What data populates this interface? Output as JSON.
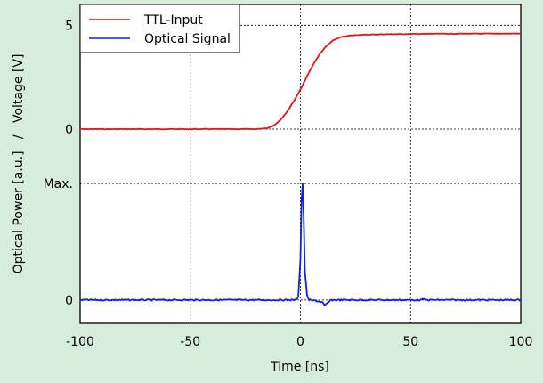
{
  "colors": {
    "background": "#d6ecdc",
    "plot_background": "#ffffff",
    "ttl": "#e8111a",
    "optical": "#0c1ef0",
    "grid": "#000000"
  },
  "chart_data": {
    "type": "line",
    "title": "",
    "xlabel": "Time [ns]",
    "ylabel": "Optical Power [a.u.]   /   Voltage [V]",
    "xlim": [
      -100,
      100
    ],
    "xticks": [
      -100,
      -50,
      0,
      50,
      100
    ],
    "xtick_labels": [
      "-100",
      "-50",
      "0",
      "50",
      "100"
    ],
    "grid": "dotted",
    "legend": "top-left",
    "panels": [
      {
        "name": "voltage",
        "ylim": [
          -1.5,
          6
        ],
        "yticks": [
          {
            "value": 0,
            "label": "0"
          },
          {
            "value": 5,
            "label": "5"
          }
        ]
      },
      {
        "name": "optical",
        "ylim": [
          -0.2,
          1.2
        ],
        "yticks": [
          {
            "value": 0,
            "label": "0"
          },
          {
            "value": 1,
            "label": "Max."
          }
        ]
      }
    ],
    "series": [
      {
        "name": "TTL-Input",
        "color": "#e8111a",
        "panel": "voltage",
        "points": [
          [
            -100,
            0.0
          ],
          [
            -20,
            0.0
          ],
          [
            -15,
            0.05
          ],
          [
            -12,
            0.18
          ],
          [
            -9,
            0.45
          ],
          [
            -6,
            0.85
          ],
          [
            -3,
            1.35
          ],
          [
            0,
            1.9
          ],
          [
            3,
            2.55
          ],
          [
            6,
            3.15
          ],
          [
            9,
            3.65
          ],
          [
            12,
            4.02
          ],
          [
            15,
            4.28
          ],
          [
            18,
            4.42
          ],
          [
            22,
            4.5
          ],
          [
            27,
            4.54
          ],
          [
            40,
            4.57
          ],
          [
            60,
            4.59
          ],
          [
            100,
            4.6
          ]
        ]
      },
      {
        "name": "Optical Signal",
        "color": "#0c1ef0",
        "panel": "optical",
        "points": [
          [
            -100,
            0.0
          ],
          [
            -2,
            0.0
          ],
          [
            -1,
            0.03
          ],
          [
            0,
            0.35
          ],
          [
            0.5,
            0.85
          ],
          [
            1,
            1.0
          ],
          [
            1.5,
            0.7
          ],
          [
            2,
            0.25
          ],
          [
            3,
            0.04
          ],
          [
            4,
            0.0
          ],
          [
            8,
            -0.01
          ],
          [
            10,
            -0.02
          ],
          [
            11,
            -0.05
          ],
          [
            12,
            -0.03
          ],
          [
            14,
            0.0
          ],
          [
            55,
            0.0
          ],
          [
            56,
            0.01
          ],
          [
            57,
            0.0
          ],
          [
            100,
            0.0
          ]
        ]
      }
    ]
  }
}
